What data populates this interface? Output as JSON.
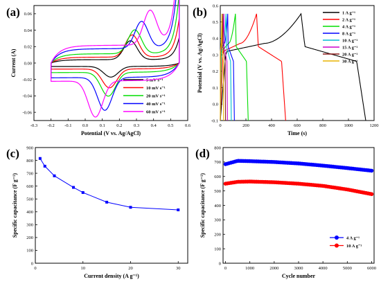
{
  "chart_data": [
    {
      "panel": "(a)",
      "type": "line",
      "xlabel": "Potential (V vs. Ag/AgCl)",
      "ylabel": "Current (A)",
      "xlim": [
        -0.3,
        0.6
      ],
      "ylim": [
        -0.07,
        0.07
      ],
      "xticks": [
        -0.3,
        -0.2,
        -0.1,
        0.0,
        0.1,
        0.2,
        0.3,
        0.4,
        0.5,
        0.6
      ],
      "xtick_labels": [
        "-0.3",
        "-0.2",
        "-0.1",
        "0.0",
        "0.1",
        "0.2",
        "0.3",
        "0.4",
        "0.5",
        "0.6"
      ],
      "yticks": [
        -0.06,
        -0.04,
        -0.02,
        0.0,
        0.02,
        0.04,
        0.06
      ],
      "ytick_labels": [
        "-0.06",
        "-0.04",
        "-0.02",
        "0.00",
        "0.02",
        "0.04",
        "0.06"
      ],
      "legend_position": "bottom-right",
      "series": [
        {
          "name": "5 mV s⁻¹",
          "color": "#000000",
          "amp": 0.004,
          "ox": [
            0.265,
            0.027
          ],
          "red": [
            0.15,
            -0.017
          ]
        },
        {
          "name": "10 mV s⁻¹",
          "color": "#ff0000",
          "amp": 0.007,
          "ox": [
            0.275,
            0.034
          ],
          "red": [
            0.142,
            -0.03
          ]
        },
        {
          "name": "20 mV s⁻¹",
          "color": "#00dd00",
          "amp": 0.011,
          "ox": [
            0.29,
            0.04
          ],
          "red": [
            0.135,
            -0.04
          ]
        },
        {
          "name": "40 mV s⁻¹",
          "color": "#0000ff",
          "amp": 0.017,
          "ox": [
            0.33,
            0.05
          ],
          "red": [
            0.115,
            -0.057
          ]
        },
        {
          "name": "60 mV s⁻¹",
          "color": "#ff00ff",
          "amp": 0.021,
          "ox": [
            0.38,
            0.063
          ],
          "red": [
            0.06,
            -0.065
          ]
        }
      ]
    },
    {
      "panel": "(b)",
      "type": "line",
      "xlabel": "Time (s)",
      "ylabel": "Potential (V vs. Ag/AgCl)",
      "xlim": [
        0,
        1200
      ],
      "ylim": [
        -0.1,
        0.6
      ],
      "xticks": [
        0,
        200,
        400,
        600,
        800,
        1000,
        1200
      ],
      "xtick_labels": [
        "0",
        "200",
        "400",
        "600",
        "800",
        "1000",
        "1200"
      ],
      "yticks": [
        -0.1,
        0.0,
        0.1,
        0.2,
        0.3,
        0.4,
        0.5,
        0.6
      ],
      "ytick_labels": [
        "-0.1",
        "0.0",
        "0.1",
        "0.2",
        "0.3",
        "0.4",
        "0.5",
        "0.6"
      ],
      "legend_position": "top-right",
      "series": [
        {
          "name": "1 A g⁻¹",
          "color": "#000000",
          "t_charge": 630,
          "t_end": 1135
        },
        {
          "name": "2 A g⁻¹",
          "color": "#ff0000",
          "t_charge": 283,
          "t_end": 510
        },
        {
          "name": "4 A g⁻¹",
          "color": "#00dd00",
          "t_charge": 118,
          "t_end": 218
        },
        {
          "name": "8 A g⁻¹",
          "color": "#0000ff",
          "t_charge": 58,
          "t_end": 110
        },
        {
          "name": "10 A g⁻¹",
          "color": "#00bcd4",
          "t_charge": 45,
          "t_end": 86
        },
        {
          "name": "15 A g⁻¹",
          "color": "#cc00cc",
          "t_charge": 28,
          "t_end": 56
        },
        {
          "name": "20 A g⁻¹",
          "color": "#8b1a1a",
          "t_charge": 20,
          "t_end": 41
        },
        {
          "name": "30 A g⁻¹",
          "color": "#e8b400",
          "t_charge": 12,
          "t_end": 26
        }
      ]
    },
    {
      "panel": "(c)",
      "type": "line",
      "xlabel": "Current density (A g⁻¹)",
      "ylabel": "Specific capacitance (F g⁻¹)",
      "xlim": [
        0,
        32
      ],
      "ylim": [
        0,
        900
      ],
      "xticks": [
        0,
        10,
        20,
        30
      ],
      "xtick_labels": [
        "0",
        "10",
        "20",
        "30"
      ],
      "yticks": [
        0,
        100,
        200,
        300,
        400,
        500,
        600,
        700,
        800,
        900
      ],
      "ytick_labels": [
        "0",
        "100",
        "200",
        "300",
        "400",
        "500",
        "600",
        "700",
        "800",
        "900"
      ],
      "series": [
        {
          "color": "#0000ff",
          "x": [
            1,
            2,
            4,
            8,
            10,
            15,
            20,
            30
          ],
          "y": [
            815,
            755,
            680,
            590,
            550,
            475,
            435,
            415
          ]
        }
      ]
    },
    {
      "panel": "(d)",
      "type": "scatter",
      "xlabel": "Cycle number",
      "ylabel": "Specific capacitance (F g⁻¹)",
      "xlim": [
        -100,
        6100
      ],
      "ylim": [
        0,
        800
      ],
      "xticks": [
        0,
        1000,
        2000,
        3000,
        4000,
        5000,
        6000
      ],
      "xtick_labels": [
        "0",
        "1000",
        "2000",
        "3000",
        "4000",
        "5000",
        "6000"
      ],
      "yticks": [
        0,
        100,
        200,
        300,
        400,
        500,
        600,
        700,
        800
      ],
      "ytick_labels": [
        "0",
        "100",
        "200",
        "300",
        "400",
        "500",
        "600",
        "700",
        "800"
      ],
      "legend_position": "bottom-right",
      "series": [
        {
          "name": "4 A g⁻¹",
          "color": "#0000ff",
          "x_key": [
            0,
            500,
            1000,
            2000,
            3000,
            4000,
            5000,
            6000
          ],
          "y_key": [
            685,
            708,
            706,
            700,
            690,
            675,
            658,
            640
          ]
        },
        {
          "name": "10 A g⁻¹",
          "color": "#ff0000",
          "x_key": [
            0,
            500,
            1000,
            2000,
            3000,
            4000,
            5000,
            6000
          ],
          "y_key": [
            550,
            563,
            565,
            560,
            550,
            535,
            510,
            478
          ]
        }
      ]
    }
  ]
}
